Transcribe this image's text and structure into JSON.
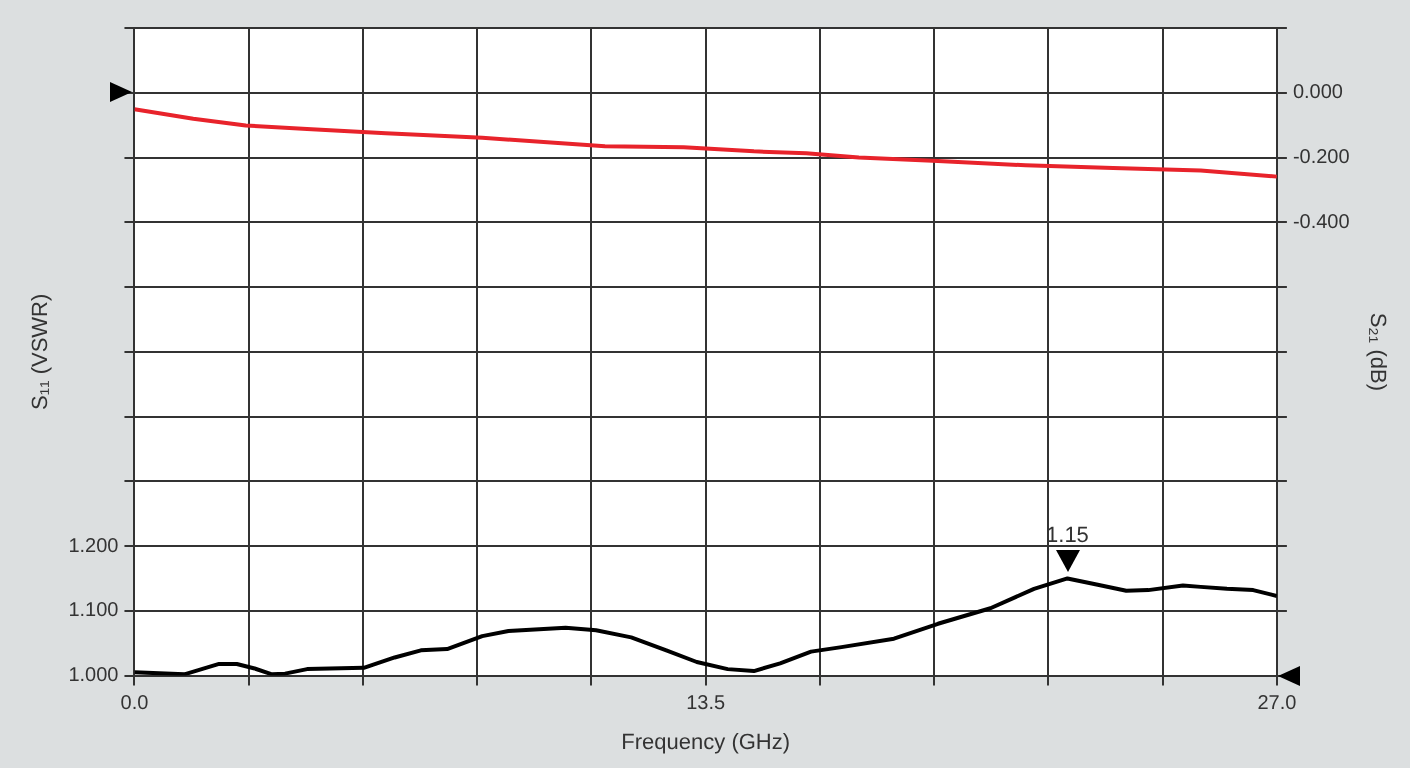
{
  "chart_data": {
    "type": "line",
    "xlabel": "Frequency (GHz)",
    "ylabel": "S₁₁ (VSWR)",
    "y2label": "S₂₁ (dB)",
    "xlim": [
      0,
      27
    ],
    "xticks": [
      {
        "value": 0,
        "label": "0.0"
      },
      {
        "value": 2.7,
        "label": null
      },
      {
        "value": 5.4,
        "label": null
      },
      {
        "value": 8.1,
        "label": null
      },
      {
        "value": 10.8,
        "label": null
      },
      {
        "value": 13.5,
        "label": "13.5"
      },
      {
        "value": 16.2,
        "label": null
      },
      {
        "value": 18.9,
        "label": null
      },
      {
        "value": 21.6,
        "label": null
      },
      {
        "value": 24.3,
        "label": null
      },
      {
        "value": 27,
        "label": "27.0"
      }
    ],
    "ylim": [
      1.0,
      2.0
    ],
    "yticks": [
      {
        "value": 1.0,
        "label": "1.000"
      },
      {
        "value": 1.1,
        "label": "1.100"
      },
      {
        "value": 1.2,
        "label": "1.200"
      },
      {
        "value": 1.3,
        "label": null
      },
      {
        "value": 1.4,
        "label": null
      },
      {
        "value": 1.5,
        "label": null
      },
      {
        "value": 1.6,
        "label": null
      },
      {
        "value": 1.7,
        "label": null
      },
      {
        "value": 1.8,
        "label": null
      },
      {
        "value": 1.9,
        "label": null
      },
      {
        "value": 2.0,
        "label": null
      }
    ],
    "y2lim": [
      -1.8,
      0.2
    ],
    "y2ticks": [
      {
        "value": 0.2,
        "label": null
      },
      {
        "value": 0,
        "label": "0.000"
      },
      {
        "value": -0.2,
        "label": "-0.200"
      },
      {
        "value": -0.4,
        "label": "-0.400"
      },
      {
        "value": -0.6,
        "label": null
      },
      {
        "value": -0.8,
        "label": null
      },
      {
        "value": -1.0,
        "label": null
      },
      {
        "value": -1.2,
        "label": null
      },
      {
        "value": -1.4,
        "label": null
      },
      {
        "value": -1.6,
        "label": null
      },
      {
        "value": -1.8,
        "label": null
      }
    ],
    "grid": true,
    "legend": false,
    "marker": "none",
    "line_style": "solid",
    "annotations": [
      {
        "text": "1.15",
        "x": 22.05,
        "y": 1.15
      }
    ],
    "series": [
      {
        "color": "#000000",
        "x": [
          0,
          1.18,
          2.0,
          2.42,
          2.84,
          3.25,
          3.56,
          4.08,
          5.42,
          6.15,
          6.77,
          7.39,
          8.22,
          8.84,
          10.19,
          10.91,
          11.74,
          12.57,
          13.29,
          14.02,
          14.64,
          15.26,
          15.99,
          16.71,
          17.95,
          18.99,
          20.23,
          21.26,
          22.05,
          22.71,
          23.44,
          23.96,
          24.78,
          25.2,
          25.82,
          26.44,
          27
        ],
        "values": [
          1.005,
          1.002,
          1.018,
          1.018,
          1.011,
          1.002,
          1.003,
          1.01,
          1.012,
          1.028,
          1.039,
          1.041,
          1.061,
          1.069,
          1.074,
          1.07,
          1.059,
          1.039,
          1.021,
          1.01,
          1.007,
          1.019,
          1.037,
          1.044,
          1.057,
          1.08,
          1.104,
          1.134,
          1.15,
          1.141,
          1.131,
          1.132,
          1.139,
          1.137,
          1.134,
          1.132,
          1.123
        ]
      },
      {
        "color": "#e8232b",
        "axis": "y2",
        "x": [
          0,
          1.39,
          2.63,
          4.08,
          5.94,
          8.22,
          9.67,
          11.12,
          12.98,
          14.64,
          15.88,
          17.12,
          18.99,
          21.06,
          23.13,
          25.2,
          27
        ],
        "values": [
          -0.051,
          -0.08,
          -0.101,
          -0.112,
          -0.125,
          -0.139,
          -0.152,
          -0.165,
          -0.168,
          -0.181,
          -0.187,
          -0.2,
          -0.211,
          -0.224,
          -0.232,
          -0.24,
          -0.259
        ]
      }
    ]
  }
}
